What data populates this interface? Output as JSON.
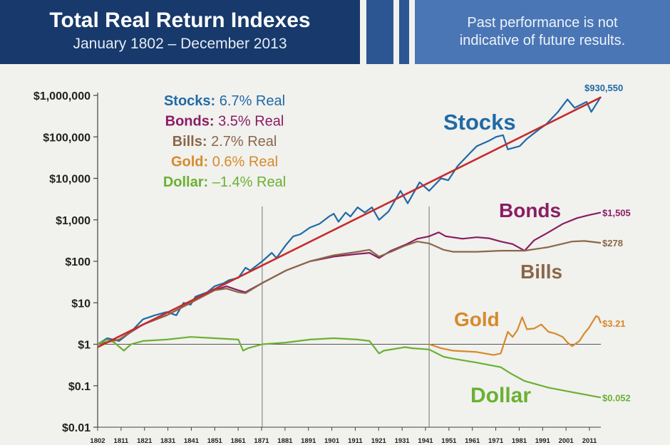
{
  "header": {
    "title": "Total Real Return Indexes",
    "subtitle": "January 1802 – December 2013",
    "disclaimer_line1": "Past performance is not",
    "disclaimer_line2": "indicative of future results.",
    "colors": {
      "dark_blue": "#17396b",
      "light_blue": "#4a76b5"
    }
  },
  "legend": [
    {
      "name": "Stocks:",
      "value": "6.7% Real",
      "color": "#1f6aa6"
    },
    {
      "name": "Bonds:",
      "value": "3.5% Real",
      "color": "#8a1d63"
    },
    {
      "name": "Bills:",
      "value": "2.7% Real",
      "color": "#8a6748"
    },
    {
      "name": "Gold:",
      "value": "0.6% Real",
      "color": "#d68a2b"
    },
    {
      "name": "Dollar:",
      "value": "–1.4% Real",
      "color": "#6ab132"
    }
  ],
  "chart_data": {
    "type": "line",
    "y_scale": "log",
    "ylim": [
      0.01,
      1000000
    ],
    "xlim": [
      1802,
      2013
    ],
    "y_ticks": [
      {
        "value": 1000000,
        "label": "$1,000,000"
      },
      {
        "value": 100000,
        "label": "$100,000"
      },
      {
        "value": 10000,
        "label": "$10,000"
      },
      {
        "value": 1000,
        "label": "$1,000"
      },
      {
        "value": 100,
        "label": "$100"
      },
      {
        "value": 10,
        "label": "$10"
      },
      {
        "value": 1,
        "label": "$1"
      },
      {
        "value": 0.1,
        "label": "$0.1"
      },
      {
        "value": 0.01,
        "label": "$0.01"
      }
    ],
    "x_ticks": [
      "1802",
      "1811",
      "1821",
      "1831",
      "1841",
      "1851",
      "1861",
      "1871",
      "1881",
      "1891",
      "1901",
      "1911",
      "1921",
      "1931",
      "1941",
      "1951",
      "1961",
      "1971",
      "1981",
      "1991",
      "2001",
      "2011"
    ],
    "vertical_lines": [
      1871,
      1941
    ],
    "series": [
      {
        "name": "Stocks",
        "color": "#1f6aa6",
        "end_label": "$930,550",
        "points": [
          [
            1802,
            1
          ],
          [
            1806,
            1.4
          ],
          [
            1811,
            1.2
          ],
          [
            1816,
            2
          ],
          [
            1821,
            4
          ],
          [
            1826,
            5
          ],
          [
            1831,
            6
          ],
          [
            1835,
            5
          ],
          [
            1838,
            10
          ],
          [
            1841,
            9
          ],
          [
            1843,
            14
          ],
          [
            1848,
            18
          ],
          [
            1851,
            25
          ],
          [
            1855,
            30
          ],
          [
            1857,
            35
          ],
          [
            1861,
            40
          ],
          [
            1864,
            70
          ],
          [
            1866,
            60
          ],
          [
            1871,
            100
          ],
          [
            1875,
            160
          ],
          [
            1877,
            120
          ],
          [
            1881,
            250
          ],
          [
            1884,
            400
          ],
          [
            1887,
            450
          ],
          [
            1891,
            650
          ],
          [
            1895,
            800
          ],
          [
            1899,
            1200
          ],
          [
            1901,
            1400
          ],
          [
            1903,
            900
          ],
          [
            1906,
            1500
          ],
          [
            1908,
            1200
          ],
          [
            1911,
            2000
          ],
          [
            1914,
            1500
          ],
          [
            1917,
            2000
          ],
          [
            1920,
            1000
          ],
          [
            1924,
            1600
          ],
          [
            1929,
            5000
          ],
          [
            1932,
            2500
          ],
          [
            1937,
            8000
          ],
          [
            1941,
            5000
          ],
          [
            1946,
            10000
          ],
          [
            1949,
            9000
          ],
          [
            1953,
            20000
          ],
          [
            1958,
            40000
          ],
          [
            1961,
            60000
          ],
          [
            1966,
            80000
          ],
          [
            1969,
            100000
          ],
          [
            1972,
            110000
          ],
          [
            1974,
            50000
          ],
          [
            1979,
            60000
          ],
          [
            1982,
            90000
          ],
          [
            1987,
            150000
          ],
          [
            1990,
            200000
          ],
          [
            1995,
            400000
          ],
          [
            1999,
            800000
          ],
          [
            2002,
            500000
          ],
          [
            2007,
            700000
          ],
          [
            2009,
            400000
          ],
          [
            2013,
            930550
          ]
        ]
      },
      {
        "name": "Bonds",
        "color": "#8a1d63",
        "end_label": "$1,505",
        "points": [
          [
            1802,
            1
          ],
          [
            1811,
            1.3
          ],
          [
            1821,
            3
          ],
          [
            1831,
            5
          ],
          [
            1841,
            10
          ],
          [
            1851,
            20
          ],
          [
            1856,
            25
          ],
          [
            1861,
            20
          ],
          [
            1864,
            18
          ],
          [
            1871,
            30
          ],
          [
            1881,
            60
          ],
          [
            1891,
            100
          ],
          [
            1901,
            130
          ],
          [
            1911,
            150
          ],
          [
            1916,
            160
          ],
          [
            1920,
            120
          ],
          [
            1925,
            180
          ],
          [
            1931,
            250
          ],
          [
            1936,
            350
          ],
          [
            1941,
            400
          ],
          [
            1945,
            500
          ],
          [
            1948,
            400
          ],
          [
            1955,
            350
          ],
          [
            1961,
            380
          ],
          [
            1966,
            360
          ],
          [
            1971,
            300
          ],
          [
            1976,
            260
          ],
          [
            1981,
            180
          ],
          [
            1985,
            320
          ],
          [
            1991,
            500
          ],
          [
            1997,
            800
          ],
          [
            2003,
            1100
          ],
          [
            2008,
            1300
          ],
          [
            2013,
            1505
          ]
        ]
      },
      {
        "name": "Bills",
        "color": "#8a6748",
        "end_label": "$278",
        "points": [
          [
            1802,
            1
          ],
          [
            1811,
            1.3
          ],
          [
            1821,
            3
          ],
          [
            1831,
            5
          ],
          [
            1841,
            10
          ],
          [
            1851,
            20
          ],
          [
            1856,
            22
          ],
          [
            1861,
            18
          ],
          [
            1864,
            17
          ],
          [
            1871,
            30
          ],
          [
            1881,
            60
          ],
          [
            1891,
            100
          ],
          [
            1901,
            140
          ],
          [
            1911,
            170
          ],
          [
            1916,
            190
          ],
          [
            1920,
            130
          ],
          [
            1925,
            170
          ],
          [
            1931,
            240
          ],
          [
            1936,
            300
          ],
          [
            1941,
            270
          ],
          [
            1947,
            190
          ],
          [
            1951,
            170
          ],
          [
            1961,
            170
          ],
          [
            1971,
            180
          ],
          [
            1981,
            180
          ],
          [
            1991,
            220
          ],
          [
            2001,
            300
          ],
          [
            2006,
            310
          ],
          [
            2013,
            278
          ]
        ]
      },
      {
        "name": "Gold",
        "color": "#d68a2b",
        "end_label": "$3.21",
        "points": [
          [
            1941,
            1
          ],
          [
            1946,
            0.8
          ],
          [
            1951,
            0.7
          ],
          [
            1961,
            0.65
          ],
          [
            1968,
            0.55
          ],
          [
            1971,
            0.6
          ],
          [
            1974,
            2
          ],
          [
            1976,
            1.5
          ],
          [
            1978,
            2.2
          ],
          [
            1980,
            4.5
          ],
          [
            1982,
            2.3
          ],
          [
            1985,
            2.4
          ],
          [
            1988,
            3
          ],
          [
            1991,
            2
          ],
          [
            1994,
            1.8
          ],
          [
            1997,
            1.5
          ],
          [
            1999,
            1.1
          ],
          [
            2001,
            0.9
          ],
          [
            2004,
            1.2
          ],
          [
            2006,
            1.8
          ],
          [
            2008,
            2.5
          ],
          [
            2011,
            4.8
          ],
          [
            2012,
            4.5
          ],
          [
            2013,
            3.21
          ]
        ]
      },
      {
        "name": "Dollar",
        "color": "#6ab132",
        "end_label": "$0.052",
        "points": [
          [
            1802,
            1
          ],
          [
            1806,
            1.3
          ],
          [
            1809,
            1.1
          ],
          [
            1813,
            0.7
          ],
          [
            1816,
            1
          ],
          [
            1821,
            1.2
          ],
          [
            1831,
            1.3
          ],
          [
            1841,
            1.5
          ],
          [
            1851,
            1.4
          ],
          [
            1861,
            1.3
          ],
          [
            1863,
            0.7
          ],
          [
            1865,
            0.8
          ],
          [
            1871,
            1
          ],
          [
            1881,
            1.1
          ],
          [
            1891,
            1.3
          ],
          [
            1901,
            1.4
          ],
          [
            1911,
            1.3
          ],
          [
            1916,
            1.2
          ],
          [
            1920,
            0.6
          ],
          [
            1922,
            0.7
          ],
          [
            1931,
            0.85
          ],
          [
            1934,
            0.8
          ],
          [
            1941,
            0.75
          ],
          [
            1947,
            0.5
          ],
          [
            1951,
            0.45
          ],
          [
            1961,
            0.36
          ],
          [
            1971,
            0.28
          ],
          [
            1975,
            0.2
          ],
          [
            1981,
            0.13
          ],
          [
            1991,
            0.09
          ],
          [
            2001,
            0.07
          ],
          [
            2013,
            0.052
          ]
        ]
      },
      {
        "name": "Trend",
        "color": "#c62a2a",
        "points": [
          [
            1802,
            0.85
          ],
          [
            2013,
            900000
          ]
        ]
      }
    ]
  },
  "plot_labels": {
    "stocks": "Stocks",
    "bonds": "Bonds",
    "bills": "Bills",
    "gold": "Gold",
    "dollar": "Dollar"
  }
}
